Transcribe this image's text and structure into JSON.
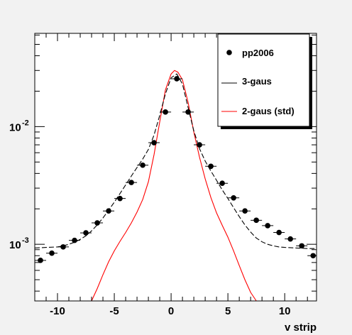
{
  "chart_data": {
    "type": "scatter",
    "xlabel": "v strip",
    "ylabel": "",
    "xlim": [
      -12,
      12.8
    ],
    "ylim": [
      0.00033,
      0.062
    ],
    "yscale": "log",
    "x_ticks": [
      {
        "value": -10,
        "label": "-10"
      },
      {
        "value": -5,
        "label": "-5"
      },
      {
        "value": 0,
        "label": "0"
      },
      {
        "value": 5,
        "label": "5"
      },
      {
        "value": 10,
        "label": "10"
      }
    ],
    "y_ticks": [
      {
        "value": 0.001,
        "base": "10",
        "exp": "-3"
      },
      {
        "value": 0.01,
        "base": "10",
        "exp": "-2"
      }
    ],
    "legend_position": "top-right",
    "series": [
      {
        "name": "pp2006",
        "style": "markers-with-xerr",
        "color": "#000000",
        "x": [
          -11.5,
          -10.5,
          -9.5,
          -8.5,
          -7.5,
          -6.5,
          -5.5,
          -4.5,
          -3.5,
          -2.5,
          -1.5,
          -0.5,
          0.5,
          1.5,
          2.5,
          3.5,
          4.5,
          5.5,
          6.5,
          7.5,
          8.5,
          9.5,
          10.5,
          11.5,
          12.5
        ],
        "y": [
          0.00073,
          0.00084,
          0.00095,
          0.00108,
          0.00125,
          0.00152,
          0.00192,
          0.00245,
          0.00335,
          0.0047,
          0.0073,
          0.0133,
          0.0255,
          0.0133,
          0.007,
          0.0046,
          0.0033,
          0.00248,
          0.00192,
          0.0016,
          0.00144,
          0.00126,
          0.00111,
          0.00097,
          0.0008
        ]
      },
      {
        "name": "3-gaus",
        "style": "dashed-line",
        "color": "#000000",
        "x": [
          -12,
          -11,
          -10,
          -9.5,
          -9,
          -8.5,
          -8,
          -7.5,
          -7,
          -6.5,
          -6,
          -5.5,
          -5,
          -4.5,
          -4,
          -3.5,
          -3,
          -2.5,
          -2,
          -1.5,
          -1,
          -0.5,
          0,
          0.5,
          1,
          1.5,
          2,
          2.5,
          3,
          3.5,
          4,
          4.5,
          5,
          5.5,
          6,
          6.5,
          7,
          7.5,
          8,
          8.5,
          9,
          9.5,
          10,
          11,
          12,
          12.8
        ],
        "y": [
          0.00093,
          0.00094,
          0.00095,
          0.00097,
          0.001,
          0.00104,
          0.0011,
          0.00118,
          0.0013,
          0.00146,
          0.00167,
          0.00195,
          0.00228,
          0.0027,
          0.0032,
          0.0038,
          0.0045,
          0.0053,
          0.0064,
          0.0085,
          0.0125,
          0.019,
          0.026,
          0.028,
          0.023,
          0.0145,
          0.0092,
          0.0065,
          0.0051,
          0.0042,
          0.0035,
          0.0029,
          0.00245,
          0.00205,
          0.00172,
          0.00146,
          0.00127,
          0.00113,
          0.00105,
          0.001,
          0.00097,
          0.00095,
          0.00094,
          0.00093,
          0.00092,
          0.00092
        ]
      },
      {
        "name": "2-gaus (std)",
        "style": "line",
        "color": "#ff0000",
        "x": [
          -7,
          -6.5,
          -6,
          -5.5,
          -5,
          -4.5,
          -4,
          -3.5,
          -3,
          -2.5,
          -2,
          -1.5,
          -1,
          -0.5,
          0,
          0.3,
          0.6,
          1,
          1.5,
          2,
          2.5,
          3,
          3.5,
          4,
          4.5,
          5,
          5.5,
          6,
          6.5,
          7,
          7.5
        ],
        "y": [
          0.00033,
          0.00042,
          0.00055,
          0.00071,
          0.00088,
          0.00106,
          0.00126,
          0.00152,
          0.00188,
          0.0024,
          0.0034,
          0.0058,
          0.011,
          0.0205,
          0.028,
          0.03,
          0.029,
          0.025,
          0.016,
          0.009,
          0.0055,
          0.0036,
          0.0025,
          0.00185,
          0.00145,
          0.00115,
          0.00088,
          0.00066,
          0.0005,
          0.00039,
          0.00033
        ]
      }
    ]
  },
  "legend": {
    "items": [
      {
        "label": "pp2006"
      },
      {
        "label": "3-gaus"
      },
      {
        "label": "2-gaus (std)"
      }
    ]
  },
  "colors": {
    "frame_background": "#f2f2f2",
    "plot_background": "#ffffff",
    "data": "#000000",
    "fit_3gaus": "#000000",
    "fit_2gaus": "#ff0000"
  }
}
